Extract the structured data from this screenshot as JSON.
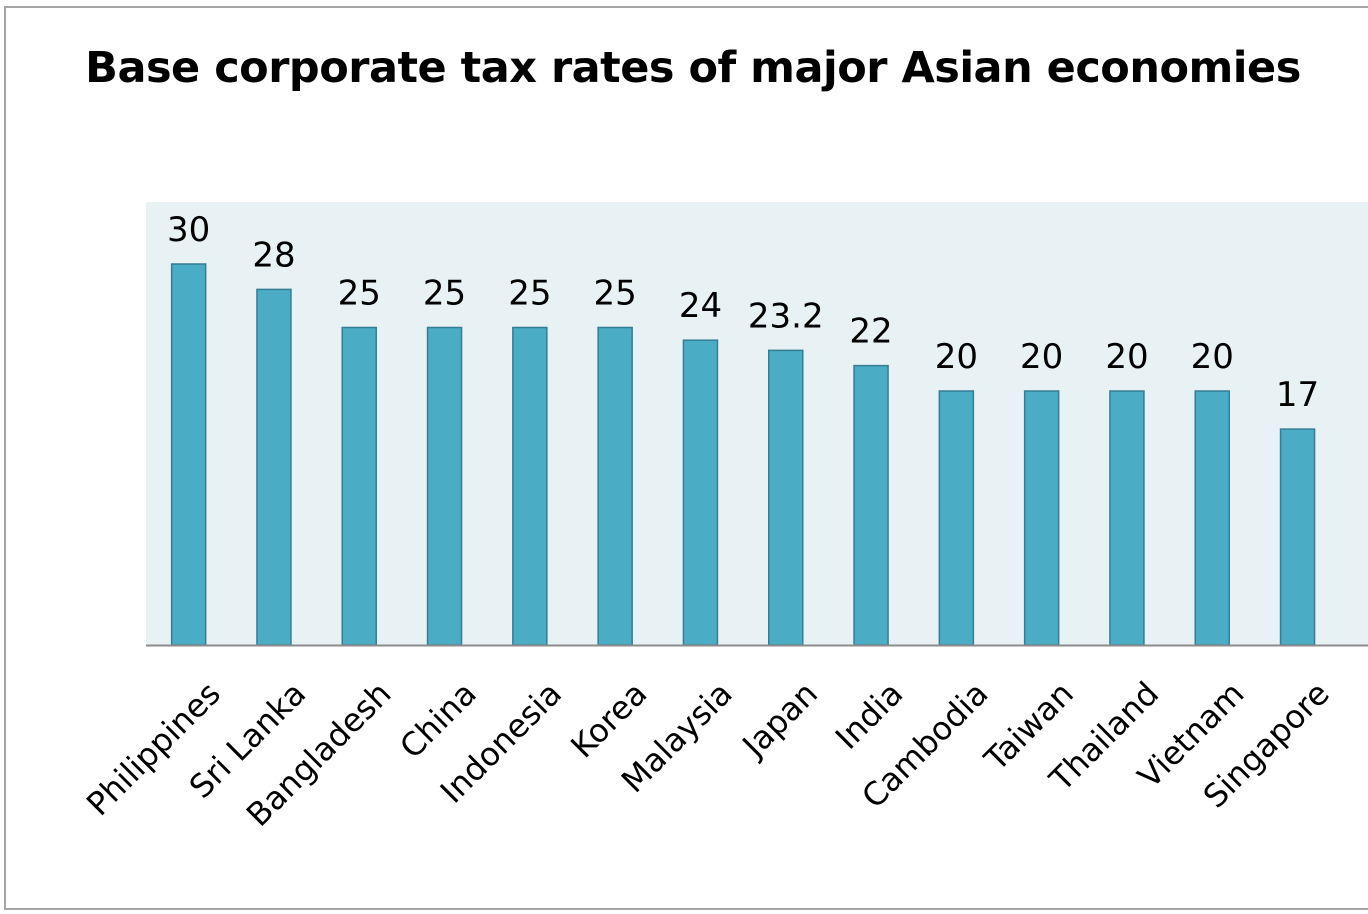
{
  "chart_data": {
    "type": "bar",
    "title": "Base corporate tax rates of major Asian economies",
    "xlabel": "",
    "ylabel": "",
    "categories": [
      "Philippines",
      "Sri Lanka",
      "Bangladesh",
      "China",
      "Indonesia",
      "Korea",
      "Malaysia",
      "Japan",
      "India",
      "Cambodia",
      "Taiwan",
      "Thailand",
      "Vietnam",
      "Singapore"
    ],
    "values": [
      30,
      28,
      25,
      25,
      25,
      25,
      24,
      23.2,
      22,
      20,
      20,
      20,
      20,
      17
    ],
    "data_labels": [
      "30",
      "28",
      "25",
      "25",
      "25",
      "25",
      "24",
      "23.2",
      "22",
      "20",
      "20",
      "20",
      "20",
      "17"
    ],
    "ylim": [
      0,
      34
    ],
    "grid": false,
    "legend": "none",
    "colors": {
      "bar_fill": "#4bacc6",
      "bar_stroke": "#357d92",
      "plot_background": "#e8f1f4",
      "axis_line": "#8c8c8c",
      "text": "#000000"
    }
  }
}
